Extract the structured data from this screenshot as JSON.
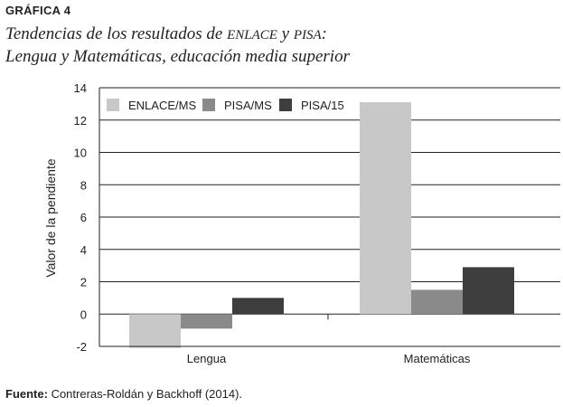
{
  "figure_label": "GRÁFICA 4",
  "title_line1_a": "Tendencias de los resultados de ",
  "title_line1_b": "ENLACE",
  "title_line1_c": " y ",
  "title_line1_d": "PISA",
  "title_line1_e": ":",
  "title_line2": "Lengua y Matemáticas, educación media superior",
  "source_prefix": "Fuente:",
  "source_text": " Contreras-Roldán y Backhoff (2014).",
  "chart_data": {
    "type": "bar",
    "title": "Tendencias de los resultados de ENLACE y PISA: Lengua y Matemáticas, educación media superior",
    "xlabel": "",
    "ylabel": "Valor de la pendiente",
    "ylim": [
      -2,
      14
    ],
    "yticks": [
      -2,
      0,
      2,
      4,
      6,
      8,
      10,
      12,
      14
    ],
    "ytick_labels": [
      "-2",
      "0",
      "2",
      "4",
      "6",
      "8",
      "10",
      "12",
      "14"
    ],
    "grid": true,
    "legend_position": "top-left",
    "categories": [
      "Lengua",
      "Matemáticas"
    ],
    "series": [
      {
        "name": "ENLACE/MS",
        "color": "#c8c8c8",
        "values": [
          -2.1,
          13.1
        ]
      },
      {
        "name": "PISA/MS",
        "color": "#8a8a8a",
        "values": [
          -0.9,
          1.5
        ]
      },
      {
        "name": "PISA/15",
        "color": "#3e3e3e",
        "values": [
          1.0,
          2.9
        ]
      }
    ]
  }
}
